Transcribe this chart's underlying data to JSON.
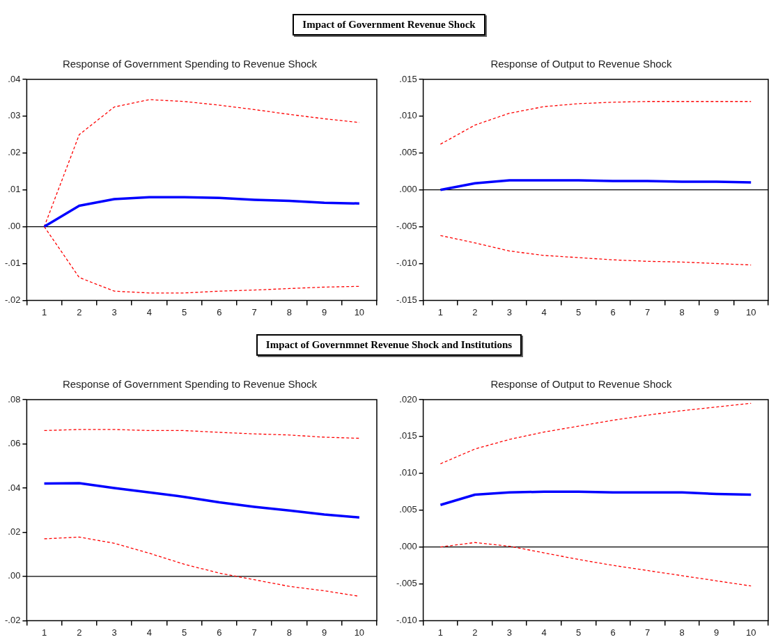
{
  "chart_data": [
    {
      "type": "line",
      "title": "Response of Government Spending to Revenue Shock",
      "annotations": [
        "Impact of Government Revenue Shock"
      ],
      "categories": [
        "1",
        "2",
        "3",
        "4",
        "5",
        "6",
        "7",
        "8",
        "9",
        "10"
      ],
      "series": [
        {
          "color": "#0000ff",
          "line_style": "solid",
          "values": [
            0,
            0.0057,
            0.0075,
            0.008,
            0.008,
            0.0078,
            0.0073,
            0.007,
            0.0065,
            0.0063
          ]
        },
        {
          "color": "#ff0000",
          "line_style": "dashed",
          "values": [
            0,
            0.025,
            0.0325,
            0.0345,
            0.034,
            0.033,
            0.0318,
            0.0305,
            0.0293,
            0.0283
          ]
        },
        {
          "color": "#ff0000",
          "line_style": "dashed",
          "values": [
            0,
            -0.0138,
            -0.0175,
            -0.018,
            -0.018,
            -0.0175,
            -0.0172,
            -0.0168,
            -0.0164,
            -0.0162
          ]
        }
      ],
      "ylim": [
        -0.02,
        0.04
      ],
      "yticks": [
        {
          "value": -0.02,
          "label": "-.02"
        },
        {
          "value": -0.01,
          "label": "-.01"
        },
        {
          "value": 0,
          "label": ".00"
        },
        {
          "value": 0.01,
          "label": ".01"
        },
        {
          "value": 0.02,
          "label": ".02"
        },
        {
          "value": 0.03,
          "label": ".03"
        },
        {
          "value": 0.04,
          "label": ".04"
        }
      ],
      "ref_lines": [
        {
          "axis": "y",
          "value": 0,
          "color": "#000000"
        }
      ]
    },
    {
      "type": "line",
      "title": "Response of Output to Revenue Shock",
      "categories": [
        "1",
        "2",
        "3",
        "4",
        "5",
        "6",
        "7",
        "8",
        "9",
        "10"
      ],
      "series": [
        {
          "color": "#0000ff",
          "line_style": "solid",
          "values": [
            0,
            0.0009,
            0.0013,
            0.0013,
            0.0013,
            0.0012,
            0.0012,
            0.0011,
            0.0011,
            0.001
          ]
        },
        {
          "color": "#ff0000",
          "line_style": "dashed",
          "values": [
            0.0062,
            0.0088,
            0.0104,
            0.0113,
            0.0117,
            0.0119,
            0.012,
            0.012,
            0.012,
            0.012
          ]
        },
        {
          "color": "#ff0000",
          "line_style": "dashed",
          "values": [
            -0.0062,
            -0.0072,
            -0.0083,
            -0.0089,
            -0.0092,
            -0.0095,
            -0.0097,
            -0.0098,
            -0.01,
            -0.0102
          ]
        }
      ],
      "ylim": [
        -0.015,
        0.015
      ],
      "yticks": [
        {
          "value": -0.015,
          "label": "-.015"
        },
        {
          "value": -0.01,
          "label": "-.010"
        },
        {
          "value": -0.005,
          "label": "-.005"
        },
        {
          "value": 0,
          "label": ".000"
        },
        {
          "value": 0.005,
          "label": ".005"
        },
        {
          "value": 0.01,
          "label": ".010"
        },
        {
          "value": 0.015,
          "label": ".015"
        }
      ],
      "ref_lines": [
        {
          "axis": "y",
          "value": 0,
          "color": "#000000"
        }
      ]
    },
    {
      "type": "line",
      "title": "Response of Government Spending to Revenue Shock",
      "annotations": [
        "Impact of Governmnet Revenue Shock and Institutions"
      ],
      "categories": [
        "1",
        "2",
        "3",
        "4",
        "5",
        "6",
        "7",
        "8",
        "9",
        "10"
      ],
      "series": [
        {
          "color": "#0000ff",
          "line_style": "solid",
          "values": [
            0.042,
            0.0422,
            0.04,
            0.038,
            0.036,
            0.0335,
            0.0315,
            0.0298,
            0.028,
            0.0267
          ]
        },
        {
          "color": "#ff0000",
          "line_style": "dashed",
          "values": [
            0.066,
            0.0665,
            0.0665,
            0.066,
            0.066,
            0.0652,
            0.0645,
            0.064,
            0.063,
            0.0625
          ]
        },
        {
          "color": "#ff0000",
          "line_style": "dashed",
          "values": [
            0.017,
            0.0178,
            0.015,
            0.0105,
            0.0055,
            0.0015,
            -0.0015,
            -0.0045,
            -0.0065,
            -0.009
          ]
        }
      ],
      "ylim": [
        -0.02,
        0.08
      ],
      "yticks": [
        {
          "value": -0.02,
          "label": "-.02"
        },
        {
          "value": 0,
          "label": ".00"
        },
        {
          "value": 0.02,
          "label": ".02"
        },
        {
          "value": 0.04,
          "label": ".04"
        },
        {
          "value": 0.06,
          "label": ".06"
        },
        {
          "value": 0.08,
          "label": ".08"
        }
      ],
      "ref_lines": [
        {
          "axis": "y",
          "value": 0,
          "color": "#000000"
        }
      ]
    },
    {
      "type": "line",
      "title": "Response of Output to Revenue Shock",
      "categories": [
        "1",
        "2",
        "3",
        "4",
        "5",
        "6",
        "7",
        "8",
        "9",
        "10"
      ],
      "series": [
        {
          "color": "#0000ff",
          "line_style": "solid",
          "values": [
            0.0057,
            0.0071,
            0.0074,
            0.0075,
            0.0075,
            0.0074,
            0.0074,
            0.0074,
            0.0072,
            0.0071
          ]
        },
        {
          "color": "#ff0000",
          "line_style": "dashed",
          "values": [
            0.0113,
            0.0133,
            0.0146,
            0.0156,
            0.0164,
            0.0172,
            0.0179,
            0.0185,
            0.019,
            0.0195
          ]
        },
        {
          "color": "#ff0000",
          "line_style": "dashed",
          "values": [
            0,
            0.0006,
            0.0001,
            -0.0008,
            -0.0017,
            -0.0025,
            -0.0032,
            -0.0039,
            -0.0046,
            -0.0053
          ]
        }
      ],
      "ylim": [
        -0.01,
        0.02
      ],
      "yticks": [
        {
          "value": -0.01,
          "label": "-.010"
        },
        {
          "value": -0.005,
          "label": "-.005"
        },
        {
          "value": 0,
          "label": ".000"
        },
        {
          "value": 0.005,
          "label": ".005"
        },
        {
          "value": 0.01,
          "label": ".010"
        },
        {
          "value": 0.015,
          "label": ".015"
        },
        {
          "value": 0.02,
          "label": ".020"
        }
      ],
      "ref_lines": [
        {
          "axis": "y",
          "value": 0,
          "color": "#000000"
        }
      ]
    }
  ]
}
